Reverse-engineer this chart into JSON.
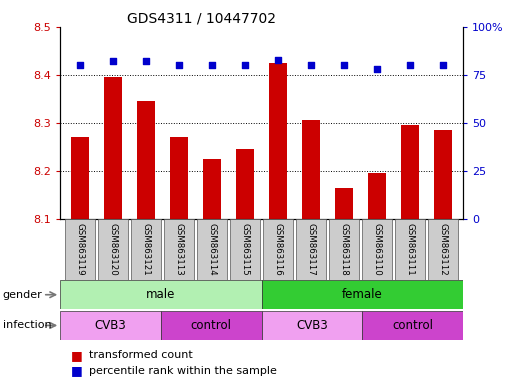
{
  "title": "GDS4311 / 10447702",
  "samples": [
    "GSM863119",
    "GSM863120",
    "GSM863121",
    "GSM863113",
    "GSM863114",
    "GSM863115",
    "GSM863116",
    "GSM863117",
    "GSM863118",
    "GSM863110",
    "GSM863111",
    "GSM863112"
  ],
  "transformed_count": [
    8.27,
    8.395,
    8.345,
    8.27,
    8.225,
    8.245,
    8.425,
    8.305,
    8.165,
    8.195,
    8.295,
    8.285
  ],
  "percentile_rank": [
    80,
    82,
    82,
    80,
    80,
    80,
    83,
    80,
    80,
    78,
    80,
    80
  ],
  "ylim_left": [
    8.1,
    8.5
  ],
  "ylim_right": [
    0,
    100
  ],
  "yticks_left": [
    8.1,
    8.2,
    8.3,
    8.4,
    8.5
  ],
  "yticks_right": [
    0,
    25,
    50,
    75,
    100
  ],
  "bar_color": "#cc0000",
  "dot_color": "#0000cc",
  "bar_bottom": 8.1,
  "grid_lines": [
    8.2,
    8.3,
    8.4
  ],
  "gender_groups": [
    {
      "label": "male",
      "start": 0,
      "end": 6,
      "color": "#b2f0b2"
    },
    {
      "label": "female",
      "start": 6,
      "end": 12,
      "color": "#33cc33"
    }
  ],
  "infection_groups": [
    {
      "label": "CVB3",
      "start": 0,
      "end": 3,
      "color": "#f0a0f0"
    },
    {
      "label": "control",
      "start": 3,
      "end": 6,
      "color": "#cc44cc"
    },
    {
      "label": "CVB3",
      "start": 6,
      "end": 9,
      "color": "#f0a0f0"
    },
    {
      "label": "control",
      "start": 9,
      "end": 12,
      "color": "#cc44cc"
    }
  ],
  "legend_tc": "transformed count",
  "legend_pr": "percentile rank within the sample",
  "bar_color_legend": "#cc0000",
  "dot_color_legend": "#0000cc",
  "bg_sample_color": "#cccccc",
  "gender_row_label": "gender",
  "infection_row_label": "infection",
  "xlabel_color_left": "#cc0000",
  "xlabel_color_right": "#0000cc"
}
